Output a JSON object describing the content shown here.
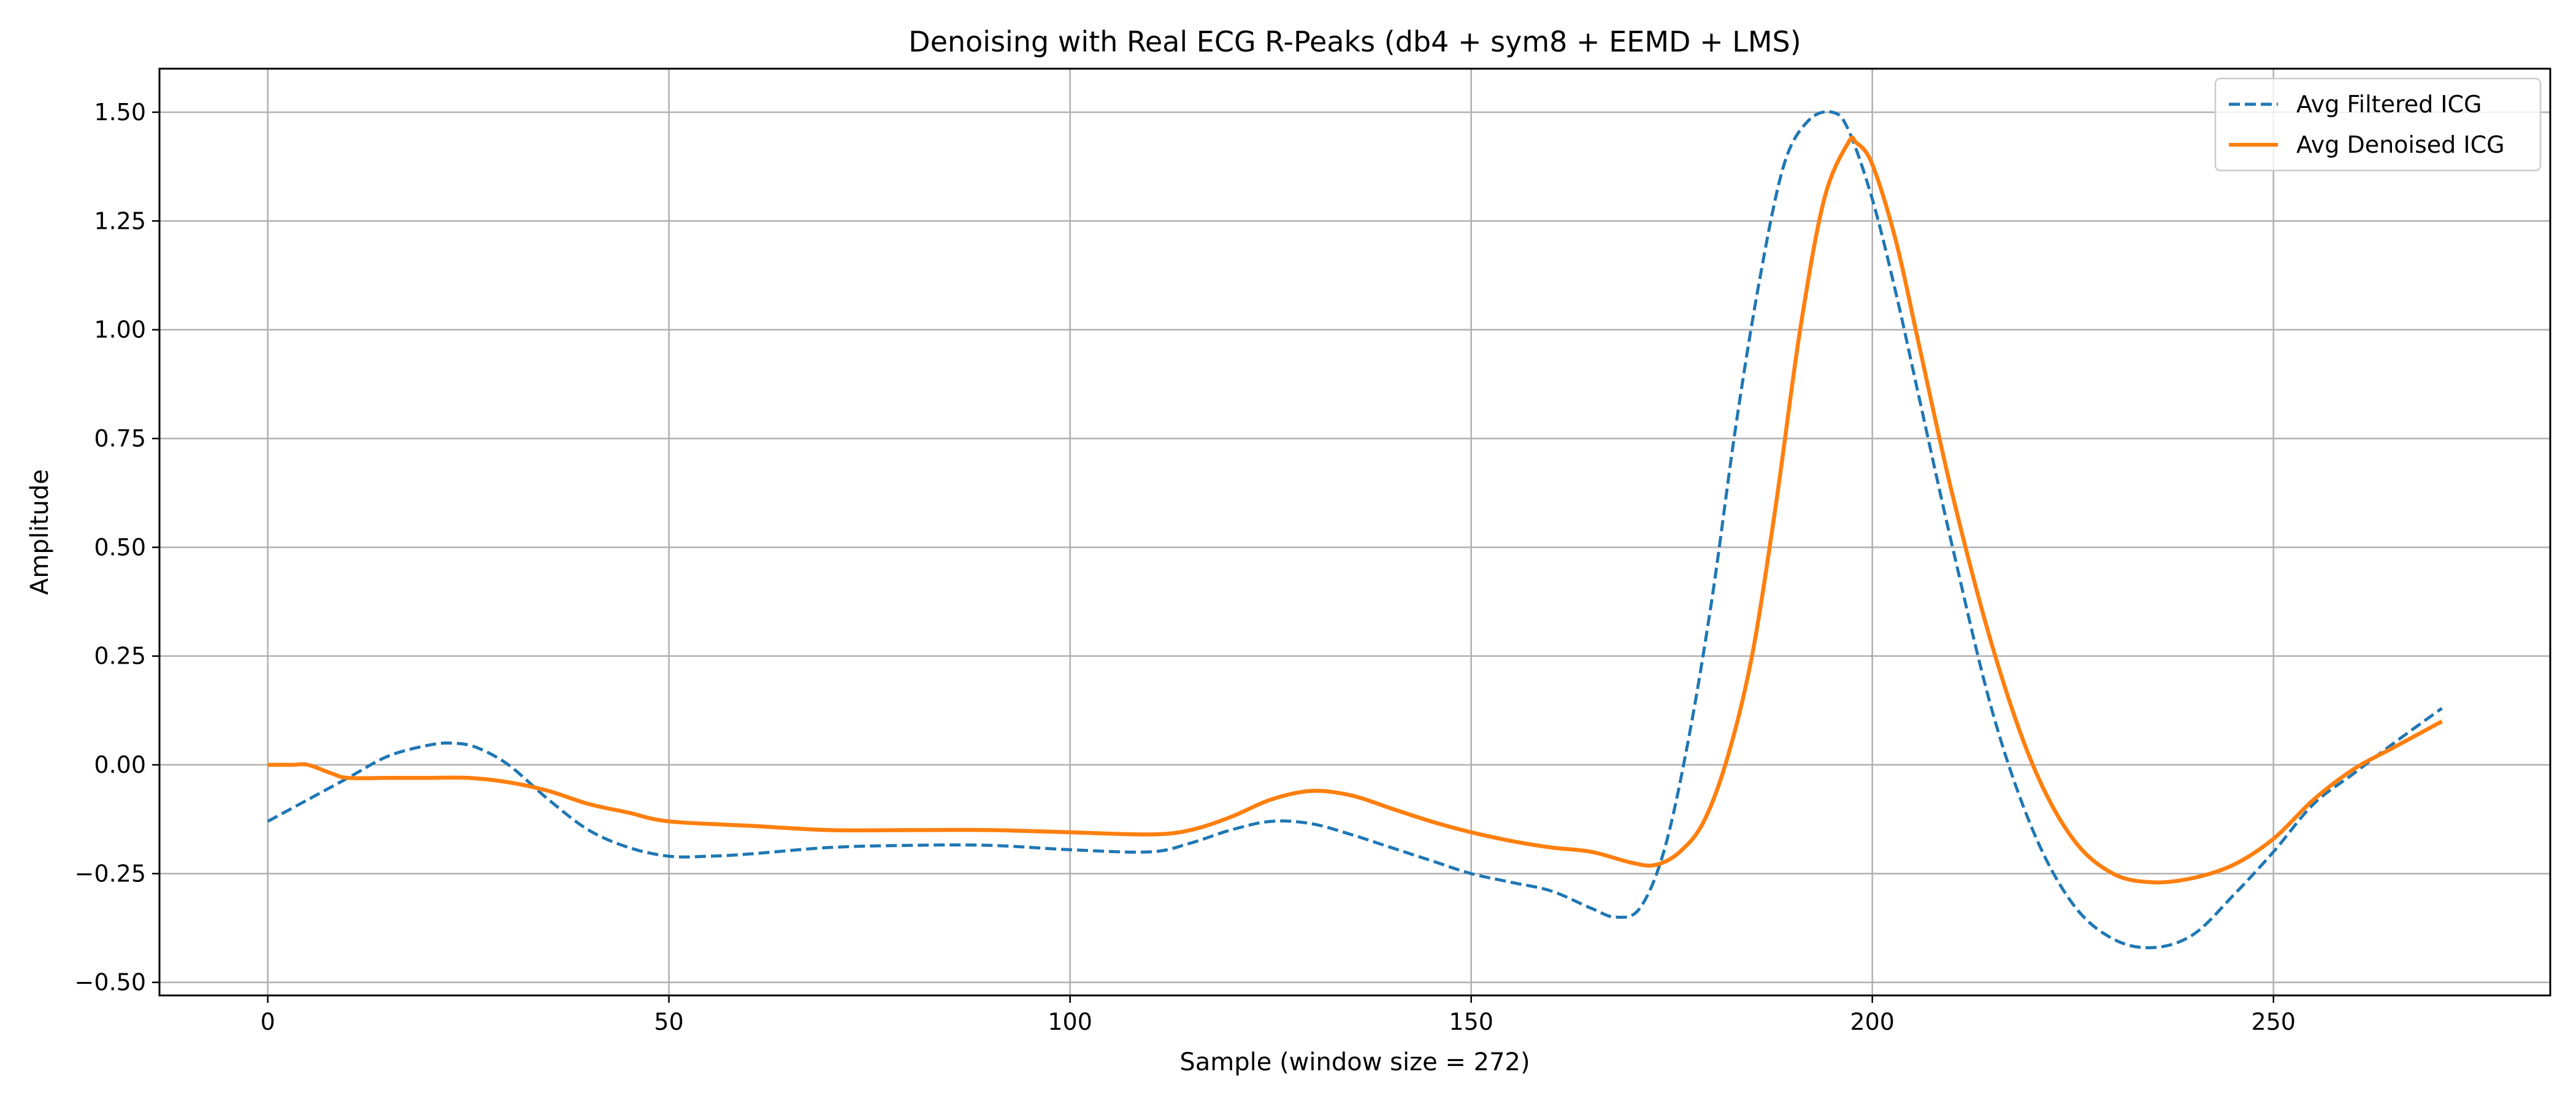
{
  "chart_data": {
    "type": "line",
    "title": "Denoising with Real ECG R-Peaks (db4 + sym8 + EEMD + LMS)",
    "xlabel": "Sample (window size = 272)",
    "ylabel": "Amplitude",
    "xlim": [
      -13.5,
      284.5
    ],
    "ylim": [
      -0.53,
      1.6
    ],
    "xticks": [
      0,
      50,
      100,
      150,
      200,
      250
    ],
    "xtick_labels": [
      "0",
      "50",
      "100",
      "150",
      "200",
      "250"
    ],
    "yticks": [
      -0.5,
      -0.25,
      0.0,
      0.25,
      0.5,
      0.75,
      1.0,
      1.25,
      1.5
    ],
    "ytick_labels": [
      "−0.50",
      "−0.25",
      "0.00",
      "0.25",
      "0.50",
      "0.75",
      "1.00",
      "1.25",
      "1.50"
    ],
    "grid": true,
    "legend_position": "top-right",
    "series": [
      {
        "name": "Avg Filtered ICG",
        "color": "#1f77b4",
        "style": "dashed",
        "x": [
          0,
          5,
          10,
          15,
          20,
          23,
          26,
          30,
          35,
          40,
          45,
          50,
          55,
          60,
          70,
          80,
          90,
          100,
          110,
          115,
          120,
          125,
          130,
          135,
          140,
          145,
          150,
          155,
          160,
          165,
          168,
          171,
          174,
          177,
          180,
          183,
          186,
          189,
          192,
          195,
          197,
          200,
          203,
          206,
          210,
          215,
          220,
          225,
          230,
          235,
          240,
          245,
          250,
          255,
          260,
          265,
          271
        ],
        "y": [
          -0.13,
          -0.08,
          -0.03,
          0.02,
          0.045,
          0.05,
          0.04,
          0.0,
          -0.08,
          -0.15,
          -0.19,
          -0.21,
          -0.21,
          -0.205,
          -0.19,
          -0.185,
          -0.185,
          -0.195,
          -0.2,
          -0.18,
          -0.15,
          -0.13,
          -0.135,
          -0.16,
          -0.19,
          -0.22,
          -0.25,
          -0.27,
          -0.29,
          -0.33,
          -0.35,
          -0.33,
          -0.2,
          0.05,
          0.38,
          0.78,
          1.12,
          1.38,
          1.48,
          1.5,
          1.46,
          1.3,
          1.08,
          0.83,
          0.5,
          0.12,
          -0.15,
          -0.32,
          -0.4,
          -0.42,
          -0.39,
          -0.3,
          -0.2,
          -0.09,
          -0.02,
          0.05,
          0.13
        ]
      },
      {
        "name": "Avg Denoised ICG",
        "color": "#ff7f0e",
        "style": "solid",
        "x": [
          0,
          3,
          5,
          8,
          10,
          15,
          20,
          25,
          30,
          35,
          40,
          45,
          50,
          60,
          70,
          80,
          90,
          100,
          110,
          115,
          120,
          125,
          130,
          135,
          140,
          145,
          150,
          155,
          160,
          165,
          170,
          173,
          176,
          179,
          182,
          185,
          188,
          191,
          194,
          197,
          198,
          200,
          203,
          206,
          210,
          215,
          220,
          225,
          230,
          235,
          240,
          245,
          250,
          255,
          260,
          265,
          271
        ],
        "y": [
          0.0,
          0.0,
          0.0,
          -0.02,
          -0.03,
          -0.03,
          -0.03,
          -0.03,
          -0.04,
          -0.06,
          -0.09,
          -0.11,
          -0.13,
          -0.14,
          -0.15,
          -0.15,
          -0.15,
          -0.155,
          -0.16,
          -0.15,
          -0.12,
          -0.08,
          -0.06,
          -0.07,
          -0.1,
          -0.13,
          -0.155,
          -0.175,
          -0.19,
          -0.2,
          -0.225,
          -0.23,
          -0.2,
          -0.13,
          0.02,
          0.25,
          0.6,
          1.0,
          1.3,
          1.43,
          1.43,
          1.38,
          1.2,
          0.95,
          0.62,
          0.27,
          0.0,
          -0.17,
          -0.25,
          -0.27,
          -0.26,
          -0.23,
          -0.17,
          -0.08,
          -0.01,
          0.04,
          0.1
        ]
      }
    ]
  }
}
